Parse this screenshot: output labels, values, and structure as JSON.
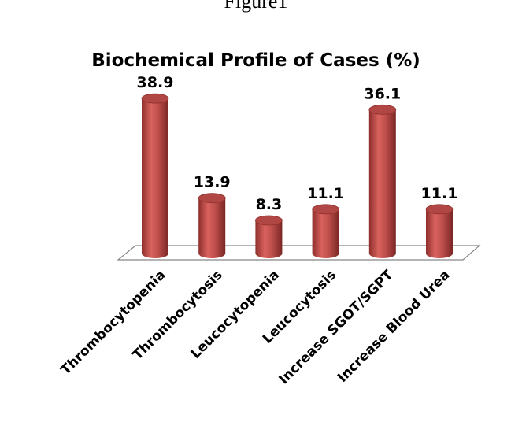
{
  "caption": "Figure1",
  "chart_data": {
    "type": "bar",
    "title": "Biochemical Profile of Cases (%)",
    "categories": [
      "Thrombocytopenia",
      "Thrombocytosis",
      "Leucocytopenia",
      "Leucocytosis",
      "Increase SGOT/SGPT",
      "Increase Blood Urea"
    ],
    "values": [
      38.9,
      13.9,
      8.3,
      11.1,
      36.1,
      11.1
    ],
    "color": "#c0504d"
  }
}
